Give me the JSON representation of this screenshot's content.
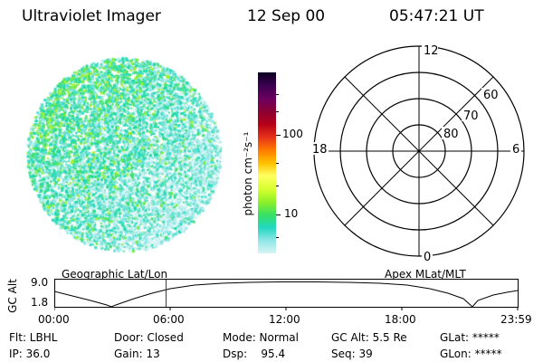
{
  "header": {
    "instrument": "Ultraviolet Imager",
    "date": "12 Sep 00",
    "time": "05:47:21 UT"
  },
  "colorbar": {
    "unit_label": "photon cm⁻²s⁻¹",
    "ticks": [
      "100",
      "10"
    ],
    "colors": [
      "#0a0020",
      "#3a0050",
      "#6a0060",
      "#8a0035",
      "#b50018",
      "#e5301a",
      "#ff7a00",
      "#ffc000",
      "#ffff60",
      "#d8ff30",
      "#90f028",
      "#38e060",
      "#20d8c0",
      "#90e6e8",
      "#d8f4f4"
    ]
  },
  "polar_plot": {
    "mlt_labels": {
      "top": "12",
      "left": "18",
      "right": "6",
      "bottom": "0"
    },
    "lat_labels": [
      "60",
      "70",
      "80"
    ]
  },
  "timeline": {
    "axis_label": "GC Alt",
    "left_label": "Geographic Lat/Lon",
    "right_label": "Apex MLat/MLT",
    "y_ticks": [
      "9.0",
      "1.8"
    ],
    "x_ticks": [
      "00:00",
      "06:00",
      "12:00",
      "18:00",
      "23:59"
    ],
    "current_marker_hours": 5.79,
    "marker_color": "#c00000"
  },
  "footer": {
    "flt": "Flt: LBHL",
    "ip": "IP: 36.0",
    "door": "Door: Closed",
    "gain": "Gain: 13",
    "mode": "Mode: Normal",
    "dsp": "Dsp:    95.4",
    "gcalt": "GC Alt: 5.5 Re",
    "seq": "Seq: 39",
    "glat": "GLat: *****",
    "glon": "GLon: *****"
  }
}
